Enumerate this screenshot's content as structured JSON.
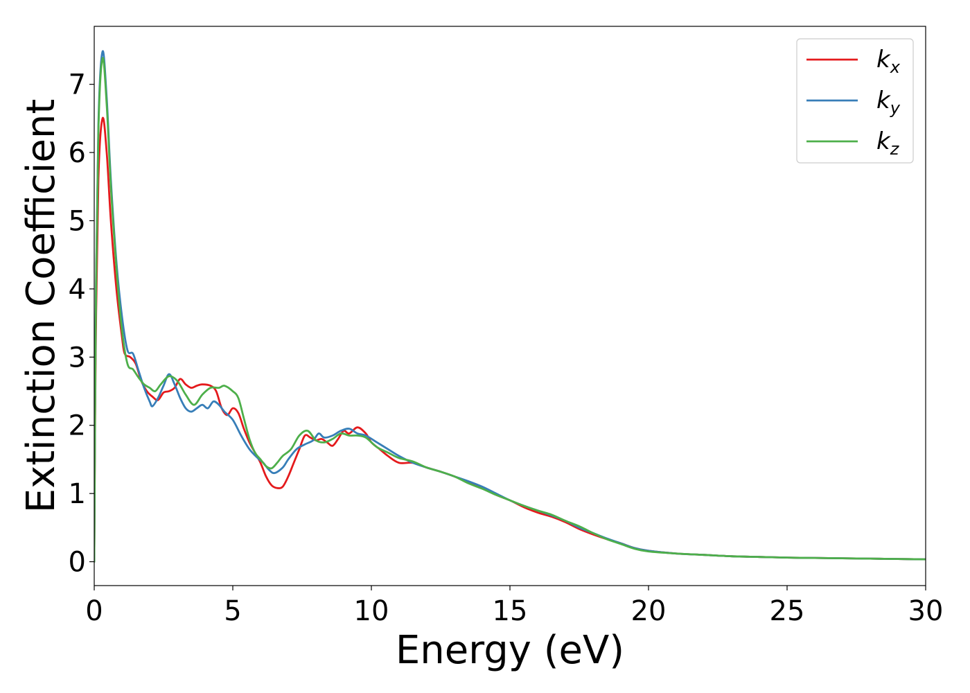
{
  "chart_data": {
    "type": "line",
    "xlabel": "Energy (eV)",
    "ylabel": "Extinction Coefficient",
    "xlim": [
      0,
      30
    ],
    "ylim": [
      -0.35,
      7.85
    ],
    "xticks": [
      0,
      5,
      10,
      15,
      20,
      25,
      30
    ],
    "yticks": [
      0,
      1,
      2,
      3,
      4,
      5,
      6,
      7
    ],
    "grid": false,
    "legend_position": "top-right",
    "series": [
      {
        "name": "k",
        "subscript": "x",
        "color": "#e41a1c",
        "points": [
          [
            0,
            0
          ],
          [
            0.05,
            3.0
          ],
          [
            0.15,
            5.6
          ],
          [
            0.3,
            6.5
          ],
          [
            0.45,
            6.0
          ],
          [
            0.6,
            5.0
          ],
          [
            0.8,
            4.0
          ],
          [
            1.0,
            3.3
          ],
          [
            1.1,
            3.05
          ],
          [
            1.3,
            3.0
          ],
          [
            1.5,
            2.9
          ],
          [
            1.7,
            2.65
          ],
          [
            1.9,
            2.5
          ],
          [
            2.1,
            2.42
          ],
          [
            2.3,
            2.37
          ],
          [
            2.5,
            2.48
          ],
          [
            2.7,
            2.5
          ],
          [
            2.9,
            2.55
          ],
          [
            3.1,
            2.68
          ],
          [
            3.3,
            2.6
          ],
          [
            3.5,
            2.55
          ],
          [
            3.7,
            2.58
          ],
          [
            3.9,
            2.6
          ],
          [
            4.2,
            2.58
          ],
          [
            4.4,
            2.5
          ],
          [
            4.6,
            2.25
          ],
          [
            4.8,
            2.15
          ],
          [
            5.0,
            2.25
          ],
          [
            5.2,
            2.18
          ],
          [
            5.4,
            1.95
          ],
          [
            5.6,
            1.75
          ],
          [
            5.8,
            1.6
          ],
          [
            6.0,
            1.45
          ],
          [
            6.2,
            1.25
          ],
          [
            6.4,
            1.12
          ],
          [
            6.6,
            1.08
          ],
          [
            6.8,
            1.1
          ],
          [
            7.0,
            1.25
          ],
          [
            7.2,
            1.45
          ],
          [
            7.4,
            1.65
          ],
          [
            7.6,
            1.85
          ],
          [
            7.8,
            1.82
          ],
          [
            8.0,
            1.78
          ],
          [
            8.2,
            1.8
          ],
          [
            8.4,
            1.75
          ],
          [
            8.6,
            1.7
          ],
          [
            8.8,
            1.8
          ],
          [
            9.0,
            1.92
          ],
          [
            9.2,
            1.88
          ],
          [
            9.5,
            1.97
          ],
          [
            9.8,
            1.88
          ],
          [
            10.0,
            1.75
          ],
          [
            10.3,
            1.65
          ],
          [
            10.6,
            1.55
          ],
          [
            11.0,
            1.45
          ],
          [
            11.5,
            1.45
          ],
          [
            12.0,
            1.38
          ],
          [
            12.5,
            1.32
          ],
          [
            13.0,
            1.25
          ],
          [
            13.5,
            1.17
          ],
          [
            14.0,
            1.08
          ],
          [
            14.5,
            0.98
          ],
          [
            15.0,
            0.9
          ],
          [
            15.5,
            0.8
          ],
          [
            16.0,
            0.72
          ],
          [
            16.5,
            0.66
          ],
          [
            17.0,
            0.58
          ],
          [
            17.5,
            0.48
          ],
          [
            18.0,
            0.4
          ],
          [
            18.5,
            0.33
          ],
          [
            19.0,
            0.27
          ],
          [
            19.5,
            0.2
          ],
          [
            20.0,
            0.16
          ],
          [
            21.0,
            0.12
          ],
          [
            22.0,
            0.1
          ],
          [
            23.0,
            0.08
          ],
          [
            24.0,
            0.07
          ],
          [
            25.0,
            0.06
          ],
          [
            26.0,
            0.055
          ],
          [
            27.0,
            0.05
          ],
          [
            28.0,
            0.045
          ],
          [
            29.0,
            0.04
          ],
          [
            30.0,
            0.035
          ]
        ]
      },
      {
        "name": "k",
        "subscript": "y",
        "color": "#377eb8",
        "points": [
          [
            0,
            0
          ],
          [
            0.05,
            3.4
          ],
          [
            0.15,
            6.4
          ],
          [
            0.3,
            7.48
          ],
          [
            0.45,
            6.8
          ],
          [
            0.6,
            5.6
          ],
          [
            0.8,
            4.4
          ],
          [
            1.0,
            3.6
          ],
          [
            1.2,
            3.1
          ],
          [
            1.4,
            3.05
          ],
          [
            1.6,
            2.8
          ],
          [
            1.8,
            2.55
          ],
          [
            2.0,
            2.35
          ],
          [
            2.1,
            2.28
          ],
          [
            2.3,
            2.4
          ],
          [
            2.5,
            2.58
          ],
          [
            2.7,
            2.75
          ],
          [
            2.9,
            2.6
          ],
          [
            3.1,
            2.4
          ],
          [
            3.3,
            2.25
          ],
          [
            3.5,
            2.2
          ],
          [
            3.7,
            2.25
          ],
          [
            3.9,
            2.3
          ],
          [
            4.1,
            2.25
          ],
          [
            4.3,
            2.35
          ],
          [
            4.5,
            2.3
          ],
          [
            4.7,
            2.2
          ],
          [
            5.0,
            2.08
          ],
          [
            5.3,
            1.85
          ],
          [
            5.6,
            1.65
          ],
          [
            5.9,
            1.52
          ],
          [
            6.1,
            1.45
          ],
          [
            6.3,
            1.35
          ],
          [
            6.5,
            1.3
          ],
          [
            6.8,
            1.38
          ],
          [
            7.0,
            1.5
          ],
          [
            7.3,
            1.65
          ],
          [
            7.6,
            1.72
          ],
          [
            7.9,
            1.78
          ],
          [
            8.1,
            1.88
          ],
          [
            8.3,
            1.82
          ],
          [
            8.6,
            1.85
          ],
          [
            8.9,
            1.92
          ],
          [
            9.2,
            1.95
          ],
          [
            9.5,
            1.88
          ],
          [
            9.8,
            1.85
          ],
          [
            10.2,
            1.75
          ],
          [
            10.6,
            1.65
          ],
          [
            11.0,
            1.55
          ],
          [
            11.5,
            1.45
          ],
          [
            12.0,
            1.38
          ],
          [
            12.5,
            1.32
          ],
          [
            13.0,
            1.25
          ],
          [
            13.5,
            1.18
          ],
          [
            14.0,
            1.1
          ],
          [
            14.5,
            1.0
          ],
          [
            15.0,
            0.9
          ],
          [
            15.5,
            0.82
          ],
          [
            16.0,
            0.75
          ],
          [
            16.5,
            0.68
          ],
          [
            17.0,
            0.6
          ],
          [
            17.5,
            0.5
          ],
          [
            18.0,
            0.42
          ],
          [
            18.5,
            0.34
          ],
          [
            19.0,
            0.27
          ],
          [
            19.5,
            0.2
          ],
          [
            20.0,
            0.16
          ],
          [
            21.0,
            0.12
          ],
          [
            22.0,
            0.1
          ],
          [
            23.0,
            0.08
          ],
          [
            24.0,
            0.07
          ],
          [
            25.0,
            0.06
          ],
          [
            26.0,
            0.055
          ],
          [
            27.0,
            0.05
          ],
          [
            28.0,
            0.045
          ],
          [
            29.0,
            0.04
          ],
          [
            30.0,
            0.035
          ]
        ]
      },
      {
        "name": "k",
        "subscript": "z",
        "color": "#4daf4a",
        "points": [
          [
            0,
            0
          ],
          [
            0.05,
            3.3
          ],
          [
            0.15,
            6.3
          ],
          [
            0.3,
            7.38
          ],
          [
            0.45,
            6.7
          ],
          [
            0.6,
            5.5
          ],
          [
            0.8,
            4.3
          ],
          [
            1.0,
            3.4
          ],
          [
            1.2,
            2.9
          ],
          [
            1.4,
            2.82
          ],
          [
            1.6,
            2.7
          ],
          [
            1.8,
            2.6
          ],
          [
            2.0,
            2.55
          ],
          [
            2.2,
            2.5
          ],
          [
            2.4,
            2.6
          ],
          [
            2.7,
            2.72
          ],
          [
            3.0,
            2.65
          ],
          [
            3.3,
            2.45
          ],
          [
            3.6,
            2.3
          ],
          [
            3.9,
            2.45
          ],
          [
            4.2,
            2.55
          ],
          [
            4.5,
            2.55
          ],
          [
            4.7,
            2.58
          ],
          [
            5.0,
            2.5
          ],
          [
            5.2,
            2.4
          ],
          [
            5.4,
            2.1
          ],
          [
            5.6,
            1.8
          ],
          [
            5.8,
            1.6
          ],
          [
            6.0,
            1.5
          ],
          [
            6.2,
            1.4
          ],
          [
            6.4,
            1.37
          ],
          [
            6.6,
            1.45
          ],
          [
            6.8,
            1.55
          ],
          [
            7.1,
            1.65
          ],
          [
            7.4,
            1.85
          ],
          [
            7.7,
            1.92
          ],
          [
            8.0,
            1.78
          ],
          [
            8.3,
            1.75
          ],
          [
            8.6,
            1.8
          ],
          [
            8.9,
            1.88
          ],
          [
            9.2,
            1.85
          ],
          [
            9.5,
            1.85
          ],
          [
            9.8,
            1.82
          ],
          [
            10.2,
            1.68
          ],
          [
            10.6,
            1.6
          ],
          [
            11.0,
            1.52
          ],
          [
            11.5,
            1.47
          ],
          [
            12.0,
            1.38
          ],
          [
            12.5,
            1.32
          ],
          [
            13.0,
            1.25
          ],
          [
            13.5,
            1.15
          ],
          [
            14.0,
            1.07
          ],
          [
            14.5,
            0.98
          ],
          [
            15.0,
            0.9
          ],
          [
            15.5,
            0.82
          ],
          [
            16.0,
            0.75
          ],
          [
            16.5,
            0.69
          ],
          [
            17.0,
            0.6
          ],
          [
            17.5,
            0.52
          ],
          [
            18.0,
            0.42
          ],
          [
            18.5,
            0.33
          ],
          [
            19.0,
            0.26
          ],
          [
            19.5,
            0.19
          ],
          [
            20.0,
            0.15
          ],
          [
            21.0,
            0.12
          ],
          [
            22.0,
            0.1
          ],
          [
            23.0,
            0.08
          ],
          [
            24.0,
            0.07
          ],
          [
            25.0,
            0.06
          ],
          [
            26.0,
            0.055
          ],
          [
            27.0,
            0.05
          ],
          [
            28.0,
            0.045
          ],
          [
            29.0,
            0.04
          ],
          [
            30.0,
            0.035
          ]
        ]
      }
    ]
  }
}
